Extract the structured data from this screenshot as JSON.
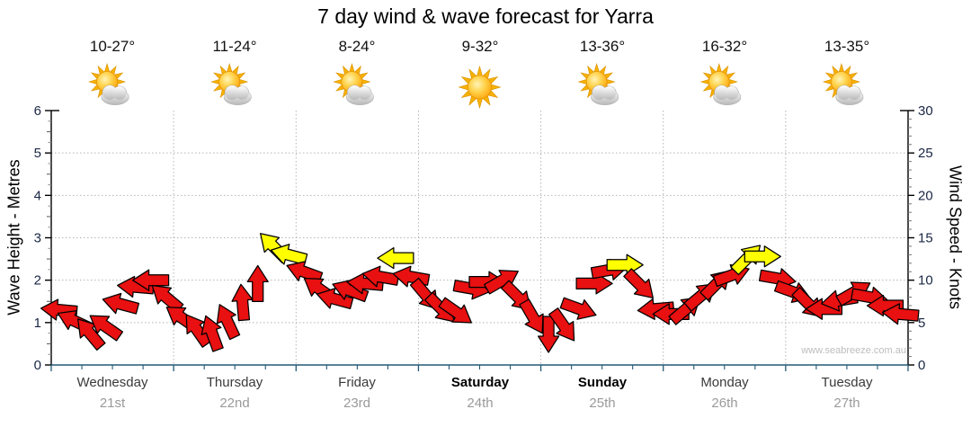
{
  "title": "7 day wind & wave forecast for Yarra",
  "watermark": "www.seabreeze.com.au",
  "left_axis": {
    "label": "Wave Height - Metres",
    "min": 0,
    "max": 6,
    "ticks": [
      0,
      1,
      2,
      3,
      4,
      5,
      6
    ]
  },
  "right_axis": {
    "label": "Wind Speed - Knots",
    "min": 0,
    "max": 30,
    "ticks": [
      0,
      5,
      10,
      15,
      20,
      25,
      30
    ]
  },
  "days": [
    {
      "name": "Wednesday",
      "date": "21st",
      "temp": "10-27°",
      "icon": "sun-cloud",
      "weekend": false
    },
    {
      "name": "Thursday",
      "date": "22nd",
      "temp": "11-24°",
      "icon": "sun-cloud",
      "weekend": false
    },
    {
      "name": "Friday",
      "date": "23rd",
      "temp": "8-24°",
      "icon": "sun-cloud",
      "weekend": false
    },
    {
      "name": "Saturday",
      "date": "24th",
      "temp": "9-32°",
      "icon": "sun",
      "weekend": true
    },
    {
      "name": "Sunday",
      "date": "25th",
      "temp": "13-36°",
      "icon": "sun-cloud",
      "weekend": true
    },
    {
      "name": "Monday",
      "date": "26th",
      "temp": "16-32°",
      "icon": "sun-cloud",
      "weekend": false
    },
    {
      "name": "Tuesday",
      "date": "27th",
      "temp": "13-35°",
      "icon": "sun-cloud",
      "weekend": false
    }
  ],
  "chart_data": {
    "type": "wind-arrows",
    "title": "7 day wind & wave forecast for Yarra",
    "x_axis": {
      "days": 7,
      "points_per_day": 8,
      "minor_ticks_per_day": 4
    },
    "y_left": {
      "label": "Wave Height - Metres",
      "range": [
        0,
        6
      ]
    },
    "y_right": {
      "label": "Wind Speed - Knots",
      "range": [
        0,
        30
      ]
    },
    "units_note": "axes aligned: 1 metre = 5 knots; arrow height read on either axis",
    "colors": {
      "normal": "#e81010",
      "strong": "#ffff00",
      "outline": "#000000",
      "x_axis_line": "#235a77",
      "gridline": "#b4b4b4"
    },
    "grid": {
      "horizontal_at_metres": [
        1,
        2,
        3,
        4,
        5
      ],
      "vertical_at_day_boundaries": true
    },
    "arrows_format": [
      "day_index",
      "slot_of_8",
      "wind_knots",
      "dir_deg_cw_from_east",
      "strong_wind_flag"
    ],
    "arrows": [
      [
        0,
        0,
        6.5,
        185,
        0
      ],
      [
        0,
        1,
        5.2,
        205,
        0
      ],
      [
        0,
        2,
        3.8,
        230,
        0
      ],
      [
        0,
        3,
        4.6,
        215,
        0
      ],
      [
        0,
        4,
        7.2,
        195,
        0
      ],
      [
        0,
        5,
        9.2,
        185,
        0
      ],
      [
        0,
        6,
        10,
        180,
        0
      ],
      [
        0,
        7,
        8,
        220,
        0
      ],
      [
        1,
        0,
        5.6,
        215,
        0
      ],
      [
        1,
        1,
        4.2,
        235,
        0
      ],
      [
        1,
        2,
        3.8,
        250,
        0
      ],
      [
        1,
        3,
        5.2,
        245,
        0
      ],
      [
        1,
        4,
        7.4,
        265,
        0
      ],
      [
        1,
        5,
        9.6,
        270,
        0
      ],
      [
        1,
        6,
        14,
        225,
        1
      ],
      [
        1,
        7,
        13,
        195,
        1
      ],
      [
        2,
        0,
        11,
        200,
        0
      ],
      [
        2,
        1,
        9,
        215,
        0
      ],
      [
        2,
        2,
        7.8,
        195,
        0
      ],
      [
        2,
        3,
        8.8,
        200,
        0
      ],
      [
        2,
        4,
        9.6,
        185,
        0
      ],
      [
        2,
        5,
        10.4,
        190,
        0
      ],
      [
        2,
        6,
        12.6,
        180,
        1
      ],
      [
        2,
        7,
        10.4,
        190,
        0
      ],
      [
        3,
        0,
        8.2,
        50,
        0
      ],
      [
        3,
        1,
        6.6,
        45,
        0
      ],
      [
        3,
        2,
        6.2,
        35,
        0
      ],
      [
        3,
        3,
        9,
        10,
        0
      ],
      [
        3,
        4,
        9.8,
        0,
        0
      ],
      [
        3,
        5,
        10,
        330,
        0
      ],
      [
        3,
        6,
        8,
        45,
        0
      ],
      [
        3,
        7,
        5.6,
        60,
        0
      ],
      [
        4,
        0,
        3.6,
        90,
        0
      ],
      [
        4,
        1,
        4.6,
        55,
        0
      ],
      [
        4,
        2,
        6.6,
        20,
        0
      ],
      [
        4,
        3,
        9.6,
        0,
        0
      ],
      [
        4,
        4,
        11.2,
        350,
        0
      ],
      [
        4,
        5,
        11.8,
        0,
        1
      ],
      [
        4,
        6,
        9.4,
        45,
        0
      ],
      [
        4,
        7,
        6.6,
        175,
        0
      ],
      [
        5,
        0,
        6,
        180,
        0
      ],
      [
        5,
        1,
        6.6,
        320,
        0
      ],
      [
        5,
        2,
        8.2,
        320,
        0
      ],
      [
        5,
        3,
        9.6,
        315,
        0
      ],
      [
        5,
        4,
        10.6,
        340,
        0
      ],
      [
        5,
        5,
        12.6,
        315,
        1
      ],
      [
        5,
        6,
        12.8,
        0,
        1
      ],
      [
        5,
        7,
        10.2,
        10,
        0
      ],
      [
        6,
        0,
        8.6,
        20,
        0
      ],
      [
        6,
        1,
        7.2,
        45,
        0
      ],
      [
        6,
        2,
        6.6,
        180,
        0
      ],
      [
        6,
        3,
        7.6,
        170,
        0
      ],
      [
        6,
        4,
        8.6,
        330,
        0
      ],
      [
        6,
        5,
        8,
        10,
        0
      ],
      [
        6,
        6,
        7,
        180,
        0
      ],
      [
        6,
        7,
        6,
        185,
        0
      ]
    ]
  }
}
